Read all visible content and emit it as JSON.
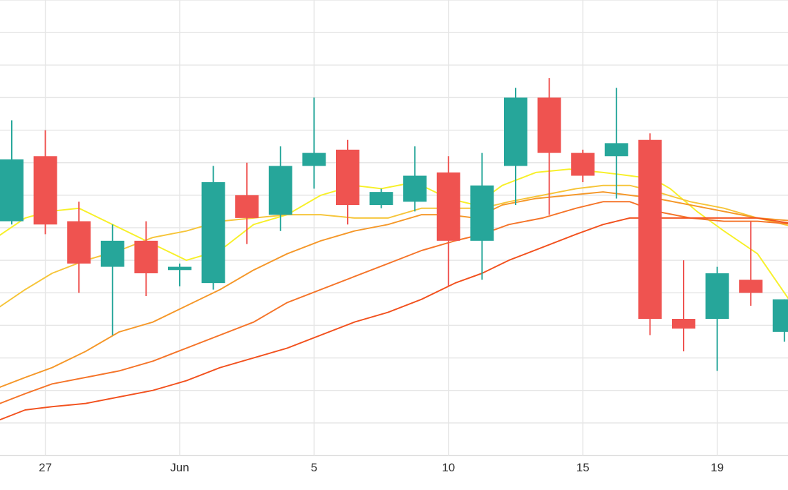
{
  "chart_data": {
    "type": "candlestick",
    "title": "",
    "xlabel": "",
    "ylabel": "",
    "grid": true,
    "legend": "none",
    "x_ticks": [
      {
        "label": "27",
        "index": 1
      },
      {
        "label": "Jun",
        "index": 5
      },
      {
        "label": "5",
        "index": 9
      },
      {
        "label": "10",
        "index": 13
      },
      {
        "label": "15",
        "index": 17
      },
      {
        "label": "19",
        "index": 21
      }
    ],
    "ylim": [
      0,
      14
    ],
    "candles": [
      {
        "open": 7.2,
        "high": 10.3,
        "low": 7.1,
        "close": 9.1
      },
      {
        "open": 9.2,
        "high": 10.0,
        "low": 6.8,
        "close": 7.1
      },
      {
        "open": 7.2,
        "high": 7.8,
        "low": 5.0,
        "close": 5.9
      },
      {
        "open": 5.8,
        "high": 7.1,
        "low": 3.7,
        "close": 6.6
      },
      {
        "open": 6.6,
        "high": 7.2,
        "low": 4.9,
        "close": 5.6
      },
      {
        "open": 5.7,
        "high": 5.9,
        "low": 5.2,
        "close": 5.8
      },
      {
        "open": 5.3,
        "high": 8.9,
        "low": 5.1,
        "close": 8.4
      },
      {
        "open": 8.0,
        "high": 9.0,
        "low": 6.5,
        "close": 7.3
      },
      {
        "open": 7.4,
        "high": 9.5,
        "low": 6.9,
        "close": 8.9
      },
      {
        "open": 8.9,
        "high": 11.0,
        "low": 8.2,
        "close": 9.3
      },
      {
        "open": 9.4,
        "high": 9.7,
        "low": 7.1,
        "close": 7.7
      },
      {
        "open": 7.7,
        "high": 8.2,
        "low": 7.6,
        "close": 8.1
      },
      {
        "open": 7.8,
        "high": 9.5,
        "low": 7.5,
        "close": 8.6
      },
      {
        "open": 8.7,
        "high": 9.2,
        "low": 5.2,
        "close": 6.6
      },
      {
        "open": 6.6,
        "high": 9.3,
        "low": 5.4,
        "close": 8.3
      },
      {
        "open": 8.9,
        "high": 11.3,
        "low": 7.7,
        "close": 11.0
      },
      {
        "open": 11.0,
        "high": 11.6,
        "low": 7.4,
        "close": 9.3
      },
      {
        "open": 9.3,
        "high": 9.4,
        "low": 8.4,
        "close": 8.6
      },
      {
        "open": 9.2,
        "high": 11.3,
        "low": 7.9,
        "close": 9.6
      },
      {
        "open": 9.7,
        "high": 9.9,
        "low": 3.7,
        "close": 4.2
      },
      {
        "open": 4.2,
        "high": 6.0,
        "low": 3.2,
        "close": 3.9
      },
      {
        "open": 4.2,
        "high": 5.8,
        "low": 2.6,
        "close": 5.6
      },
      {
        "open": 5.4,
        "high": 7.2,
        "low": 4.6,
        "close": 5.0
      },
      {
        "open": 3.8,
        "high": 4.8,
        "low": 3.5,
        "close": 4.8
      }
    ],
    "moving_averages": [
      {
        "color": "#f7f02a",
        "points": [
          [
            -0.6,
            6.6
          ],
          [
            0.4,
            7.3
          ],
          [
            1.1,
            7.5
          ],
          [
            2.0,
            7.6
          ],
          [
            3.0,
            7.1
          ],
          [
            4.2,
            6.5
          ],
          [
            5.2,
            6.0
          ],
          [
            6.2,
            6.3
          ],
          [
            7.2,
            7.1
          ],
          [
            8.2,
            7.4
          ],
          [
            9.2,
            8.0
          ],
          [
            10.2,
            8.3
          ],
          [
            11.0,
            8.2
          ],
          [
            12.0,
            8.4
          ],
          [
            13.0,
            7.9
          ],
          [
            13.8,
            7.7
          ],
          [
            14.6,
            8.3
          ],
          [
            15.6,
            8.7
          ],
          [
            16.6,
            8.8
          ],
          [
            17.6,
            8.7
          ],
          [
            18.4,
            8.6
          ],
          [
            19.1,
            8.5
          ],
          [
            19.6,
            8.2
          ],
          [
            20.4,
            7.5
          ],
          [
            21.2,
            6.9
          ],
          [
            22.2,
            6.2
          ],
          [
            23.0,
            5.0
          ],
          [
            23.4,
            4.4
          ]
        ]
      },
      {
        "color": "#f6c53a",
        "points": [
          [
            -0.6,
            4.4
          ],
          [
            0.4,
            5.1
          ],
          [
            1.2,
            5.6
          ],
          [
            2.2,
            6.0
          ],
          [
            3.2,
            6.3
          ],
          [
            4.2,
            6.7
          ],
          [
            5.2,
            6.9
          ],
          [
            6.2,
            7.2
          ],
          [
            7.2,
            7.3
          ],
          [
            8.2,
            7.4
          ],
          [
            9.2,
            7.4
          ],
          [
            10.2,
            7.3
          ],
          [
            11.2,
            7.3
          ],
          [
            12.2,
            7.6
          ],
          [
            13.2,
            7.6
          ],
          [
            14.0,
            7.6
          ],
          [
            14.8,
            7.8
          ],
          [
            15.8,
            8.0
          ],
          [
            16.8,
            8.2
          ],
          [
            17.6,
            8.3
          ],
          [
            18.4,
            8.3
          ],
          [
            19.2,
            8.1
          ],
          [
            20.2,
            7.8
          ],
          [
            21.2,
            7.6
          ],
          [
            22.2,
            7.3
          ],
          [
            23.4,
            7.0
          ]
        ]
      },
      {
        "color": "#f5982a",
        "points": [
          [
            -0.6,
            2.0
          ],
          [
            0.4,
            2.4
          ],
          [
            1.2,
            2.7
          ],
          [
            2.2,
            3.2
          ],
          [
            3.2,
            3.8
          ],
          [
            4.2,
            4.1
          ],
          [
            5.2,
            4.6
          ],
          [
            6.2,
            5.1
          ],
          [
            7.2,
            5.7
          ],
          [
            8.2,
            6.2
          ],
          [
            9.2,
            6.6
          ],
          [
            10.2,
            6.9
          ],
          [
            11.2,
            7.1
          ],
          [
            12.2,
            7.4
          ],
          [
            13.0,
            7.4
          ],
          [
            13.8,
            7.3
          ],
          [
            14.6,
            7.7
          ],
          [
            15.6,
            7.9
          ],
          [
            16.6,
            8.0
          ],
          [
            17.6,
            8.1
          ],
          [
            18.4,
            8.0
          ],
          [
            19.2,
            7.9
          ],
          [
            20.2,
            7.7
          ],
          [
            21.2,
            7.5
          ],
          [
            22.2,
            7.3
          ],
          [
            23.4,
            7.2
          ]
        ]
      },
      {
        "color": "#f5752a",
        "points": [
          [
            -0.6,
            1.5
          ],
          [
            0.4,
            1.9
          ],
          [
            1.2,
            2.2
          ],
          [
            2.2,
            2.4
          ],
          [
            3.2,
            2.6
          ],
          [
            4.2,
            2.9
          ],
          [
            5.2,
            3.3
          ],
          [
            6.2,
            3.7
          ],
          [
            7.2,
            4.1
          ],
          [
            8.2,
            4.7
          ],
          [
            9.2,
            5.1
          ],
          [
            10.2,
            5.5
          ],
          [
            11.2,
            5.9
          ],
          [
            12.2,
            6.3
          ],
          [
            13.2,
            6.6
          ],
          [
            14.0,
            6.8
          ],
          [
            14.8,
            7.1
          ],
          [
            15.8,
            7.3
          ],
          [
            16.8,
            7.6
          ],
          [
            17.6,
            7.8
          ],
          [
            18.4,
            7.8
          ],
          [
            19.2,
            7.5
          ],
          [
            20.2,
            7.3
          ],
          [
            21.2,
            7.2
          ],
          [
            22.2,
            7.2
          ],
          [
            23.4,
            7.1
          ]
        ]
      },
      {
        "color": "#f2521f",
        "points": [
          [
            -0.6,
            1.0
          ],
          [
            0.4,
            1.4
          ],
          [
            1.2,
            1.5
          ],
          [
            2.2,
            1.6
          ],
          [
            3.2,
            1.8
          ],
          [
            4.2,
            2.0
          ],
          [
            5.2,
            2.3
          ],
          [
            6.2,
            2.7
          ],
          [
            7.2,
            3.0
          ],
          [
            8.2,
            3.3
          ],
          [
            9.2,
            3.7
          ],
          [
            10.2,
            4.1
          ],
          [
            11.2,
            4.4
          ],
          [
            12.2,
            4.8
          ],
          [
            13.2,
            5.3
          ],
          [
            14.0,
            5.6
          ],
          [
            14.8,
            6.0
          ],
          [
            15.8,
            6.4
          ],
          [
            16.8,
            6.8
          ],
          [
            17.6,
            7.1
          ],
          [
            18.4,
            7.3
          ],
          [
            19.2,
            7.3
          ],
          [
            20.2,
            7.3
          ],
          [
            21.2,
            7.3
          ],
          [
            22.2,
            7.3
          ],
          [
            23.4,
            7.1
          ]
        ]
      }
    ],
    "colors": {
      "up": "#26a69a",
      "down": "#ef5350",
      "grid": "#e6e6e6"
    }
  }
}
